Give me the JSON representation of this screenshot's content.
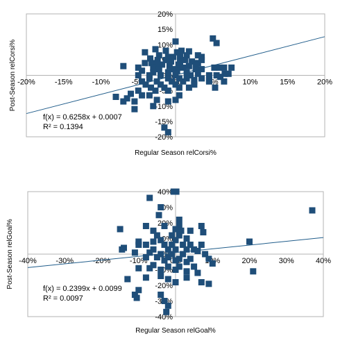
{
  "chart_data": [
    {
      "type": "scatter",
      "xlabel": "Regular Season relCorsi%",
      "ylabel": "Post-Season relCorsi%",
      "xlim": [
        -20,
        20
      ],
      "ylim": [
        -20,
        20
      ],
      "x_ticks": [
        "-20%",
        "-15%",
        "-10%",
        "-5%",
        "0%",
        "5%",
        "10%",
        "15%",
        "20%"
      ],
      "y_ticks": [
        "20%",
        "15%",
        "10%",
        "5%",
        "0%",
        "-5%",
        "-10%",
        "-15%",
        "-20%"
      ],
      "x_tick_values": [
        -20,
        -15,
        -10,
        -5,
        0,
        5,
        10,
        15,
        20
      ],
      "y_tick_values": [
        20,
        15,
        10,
        5,
        0,
        -5,
        -10,
        -15,
        -20
      ],
      "trendline": {
        "slope": 0.6258,
        "intercept": 0.07
      },
      "equation": "f(x) = 0.6258x + 0.0007",
      "r_squared": "R² = 0.1394",
      "marker_color": "#1f4e79",
      "line_color": "#1f5c8a",
      "points": [
        [
          0.0,
          11.0
        ],
        [
          5.0,
          12.0
        ],
        [
          5.5,
          10.5
        ],
        [
          -2.7,
          8.5
        ],
        [
          -1.3,
          8.0
        ],
        [
          -4.1,
          7.5
        ],
        [
          0.2,
          7.5
        ],
        [
          0.8,
          8.0
        ],
        [
          1.8,
          7.8
        ],
        [
          -2.2,
          6.5
        ],
        [
          -1.0,
          6.0
        ],
        [
          -0.3,
          6.0
        ],
        [
          0.6,
          6.0
        ],
        [
          1.5,
          6.5
        ],
        [
          3.0,
          6.5
        ],
        [
          3.5,
          6.0
        ],
        [
          -3.4,
          5.5
        ],
        [
          -2.4,
          5.0
        ],
        [
          -1.3,
          5.0
        ],
        [
          -0.6,
          4.5
        ],
        [
          0.6,
          4.5
        ],
        [
          1.3,
          5.0
        ],
        [
          2.2,
          4.5
        ],
        [
          3.0,
          4.0
        ],
        [
          3.5,
          5.0
        ],
        [
          -4.1,
          4.0
        ],
        [
          -3.2,
          4.0
        ],
        [
          -2.6,
          3.5
        ],
        [
          -1.8,
          3.5
        ],
        [
          -0.8,
          3.0
        ],
        [
          0.4,
          3.5
        ],
        [
          1.8,
          3.0
        ],
        [
          2.7,
          3.0
        ],
        [
          -7.0,
          3.0
        ],
        [
          -5.0,
          2.5
        ],
        [
          -3.0,
          2.5
        ],
        [
          -2.2,
          2.0
        ],
        [
          -0.4,
          2.0
        ],
        [
          0.2,
          1.5
        ],
        [
          1.0,
          2.5
        ],
        [
          2.7,
          2.0
        ],
        [
          3.5,
          2.0
        ],
        [
          5.2,
          2.5
        ],
        [
          5.9,
          2.5
        ],
        [
          6.5,
          2.5
        ],
        [
          7.5,
          2.5
        ],
        [
          -4.5,
          1.5
        ],
        [
          -3.0,
          1.0
        ],
        [
          -1.0,
          1.0
        ],
        [
          1.5,
          1.0
        ],
        [
          3.0,
          0.5
        ],
        [
          6.6,
          0.5
        ],
        [
          7.1,
          0.5
        ],
        [
          -5.0,
          0.0
        ],
        [
          -3.5,
          0.0
        ],
        [
          -2.0,
          0.0
        ],
        [
          0.0,
          0.0
        ],
        [
          2.0,
          0.0
        ],
        [
          4.5,
          0.0
        ],
        [
          5.5,
          0.0
        ],
        [
          6.0,
          -0.5
        ],
        [
          -3.5,
          -1.0
        ],
        [
          -1.0,
          -1.0
        ],
        [
          0.5,
          -1.0
        ],
        [
          1.5,
          -1.0
        ],
        [
          2.5,
          -1.5
        ],
        [
          3.5,
          -1.0
        ],
        [
          4.5,
          -1.5
        ],
        [
          -4.5,
          -2.0
        ],
        [
          -2.5,
          -2.0
        ],
        [
          -0.5,
          -2.0
        ],
        [
          1.0,
          -2.0
        ],
        [
          2.5,
          -2.0
        ],
        [
          4.5,
          -2.0
        ],
        [
          6.5,
          -2.0
        ],
        [
          -4.0,
          -3.0
        ],
        [
          -2.0,
          -3.0
        ],
        [
          0.0,
          -3.0
        ],
        [
          2.5,
          -3.0
        ],
        [
          -3.3,
          -4.0
        ],
        [
          -1.5,
          -4.0
        ],
        [
          0.5,
          -4.0
        ],
        [
          1.8,
          -4.0
        ],
        [
          5.3,
          -4.0
        ],
        [
          -5.0,
          -5.0
        ],
        [
          -2.7,
          -5.0
        ],
        [
          -1.0,
          -5.0
        ],
        [
          0.5,
          -6.5
        ],
        [
          -8.0,
          -7.0
        ],
        [
          -6.5,
          -7.5
        ],
        [
          -6.0,
          -6.0
        ],
        [
          -4.5,
          -6.5
        ],
        [
          -3.5,
          -6.5
        ],
        [
          -7.0,
          -8.5
        ],
        [
          -5.5,
          -8.5
        ],
        [
          -2.5,
          -8.0
        ],
        [
          -1.0,
          -8.5
        ],
        [
          0.0,
          -8.0
        ],
        [
          -3.0,
          -10.0
        ],
        [
          -5.5,
          -11.0
        ],
        [
          -1.5,
          -17.0
        ],
        [
          -1.0,
          -18.5
        ]
      ]
    },
    {
      "type": "scatter",
      "xlabel": "Regular Season relGoal%",
      "ylabel": "Post-Season relGoal%",
      "xlim": [
        -40,
        40
      ],
      "ylim": [
        -40,
        40
      ],
      "x_ticks": [
        "-40%",
        "-30%",
        "-20%",
        "-10%",
        "0%",
        "10%",
        "20%",
        "30%",
        "40%"
      ],
      "y_ticks": [
        "40%",
        "30%",
        "20%",
        "10%",
        "0%",
        "-10%",
        "-20%",
        "-30%",
        "-40%"
      ],
      "x_tick_values": [
        -40,
        -30,
        -20,
        -10,
        0,
        10,
        20,
        30,
        40
      ],
      "y_tick_values": [
        40,
        30,
        20,
        10,
        0,
        -10,
        -20,
        -30,
        -40
      ],
      "trendline": {
        "slope": 0.2399,
        "intercept": 0.99
      },
      "equation": "f(x) = 0.2399x + 0.0099",
      "r_squared": "R² = 0.0097",
      "marker_color": "#1f4e79",
      "line_color": "#1f5c8a",
      "points": [
        [
          -0.5,
          40.0
        ],
        [
          0.2,
          40.0
        ],
        [
          -7.0,
          36.0
        ],
        [
          -4.0,
          30.0
        ],
        [
          37.0,
          28.0
        ],
        [
          -4.5,
          25.0
        ],
        [
          1.0,
          22.0
        ],
        [
          -8.0,
          18.0
        ],
        [
          -3.0,
          18.0
        ],
        [
          1.0,
          18.0
        ],
        [
          7.0,
          18.0
        ],
        [
          -15.0,
          16.0
        ],
        [
          -6.0,
          15.0
        ],
        [
          0.0,
          16.0
        ],
        [
          1.5,
          15.0
        ],
        [
          4.0,
          15.0
        ],
        [
          7.5,
          14.0
        ],
        [
          -5.0,
          12.0
        ],
        [
          -1.0,
          12.0
        ],
        [
          1.0,
          12.0
        ],
        [
          3.0,
          10.0
        ],
        [
          -10.0,
          8.0
        ],
        [
          -6.0,
          8.0
        ],
        [
          -4.0,
          9.0
        ],
        [
          0.0,
          9.0
        ],
        [
          20.0,
          8.0
        ],
        [
          -10.0,
          6.0
        ],
        [
          -8.0,
          6.0
        ],
        [
          -3.0,
          6.0
        ],
        [
          -1.0,
          6.0
        ],
        [
          2.0,
          6.0
        ],
        [
          4.0,
          6.0
        ],
        [
          7.0,
          6.0
        ],
        [
          -14.0,
          4.0
        ],
        [
          -14.5,
          3.0
        ],
        [
          -6.0,
          3.0
        ],
        [
          -2.0,
          3.0
        ],
        [
          0.0,
          3.0
        ],
        [
          3.0,
          3.0
        ],
        [
          5.0,
          3.0
        ],
        [
          6.0,
          2.0
        ],
        [
          -11.0,
          1.0
        ],
        [
          -7.0,
          1.0
        ],
        [
          -4.0,
          0.0
        ],
        [
          -1.0,
          0.0
        ],
        [
          2.0,
          0.0
        ],
        [
          8.0,
          0.0
        ],
        [
          -8.0,
          -2.0
        ],
        [
          -5.0,
          -2.0
        ],
        [
          -2.0,
          -2.0
        ],
        [
          1.0,
          -3.0
        ],
        [
          4.0,
          -3.0
        ],
        [
          9.0,
          -3.0
        ],
        [
          -3.0,
          -4.0
        ],
        [
          0.0,
          -4.0
        ],
        [
          3.0,
          -5.0
        ],
        [
          10.0,
          -6.0
        ],
        [
          -6.0,
          -7.0
        ],
        [
          -2.0,
          -8.0
        ],
        [
          1.0,
          -8.0
        ],
        [
          5.0,
          -8.0
        ],
        [
          -10.0,
          -9.0
        ],
        [
          -7.0,
          -9.0
        ],
        [
          -4.0,
          -10.0
        ],
        [
          0.0,
          -10.0
        ],
        [
          3.0,
          -11.0
        ],
        [
          6.0,
          -12.0
        ],
        [
          21.0,
          -11.0
        ],
        [
          -13.0,
          -16.0
        ],
        [
          -8.0,
          -15.0
        ],
        [
          -4.0,
          -14.0
        ],
        [
          -2.0,
          -16.0
        ],
        [
          0.0,
          -18.0
        ],
        [
          3.0,
          -15.0
        ],
        [
          7.0,
          -18.0
        ],
        [
          9.0,
          -19.0
        ],
        [
          -10.0,
          -23.0
        ],
        [
          -11.0,
          -26.0
        ],
        [
          -10.5,
          -28.0
        ],
        [
          -4.0,
          -26.0
        ],
        [
          -3.0,
          -30.0
        ],
        [
          -2.0,
          -33.0
        ],
        [
          -2.5,
          -37.0
        ]
      ]
    }
  ]
}
